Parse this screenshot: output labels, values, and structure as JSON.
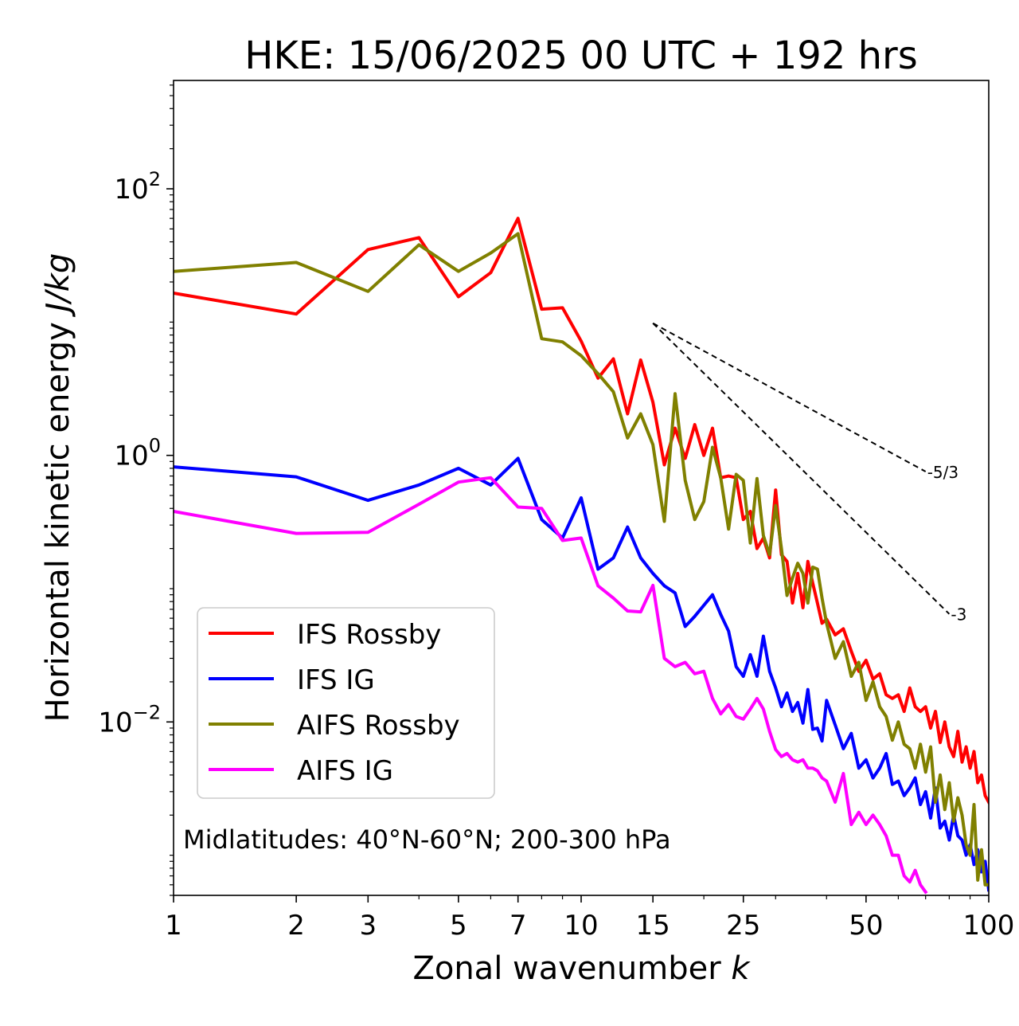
{
  "chart_data": {
    "type": "line",
    "title": "HKE: 15/06/2025 00 UTC + 192 hrs",
    "xlabel": "Zonal wavenumber",
    "xlabel_symbol": "k",
    "ylabel": "Horizontal kinetic energy",
    "ylabel_unit": "J/kg",
    "xscale": "log",
    "yscale": "log",
    "xlim": [
      1,
      100
    ],
    "ylim": [
      0.0005,
      650
    ],
    "xticks": [
      1,
      2,
      3,
      5,
      7,
      10,
      15,
      25,
      50,
      100
    ],
    "xtick_labels": [
      "1",
      "2",
      "3",
      "5",
      "7",
      "10",
      "15",
      "25",
      "50",
      "100"
    ],
    "yticks": [
      {
        "value": 100,
        "base": "10",
        "exp": "2"
      },
      {
        "value": 1,
        "base": "10",
        "exp": "0"
      },
      {
        "value": 0.01,
        "base": "10",
        "exp": "−2"
      }
    ],
    "grid": false,
    "legend_position": "lower-left",
    "annotation": "Midlatitudes: 40°N-60°N; 200-300 hPa",
    "series": [
      {
        "name": "IFS Rossby",
        "color": "#ff0000",
        "x": [
          1,
          2,
          3,
          4,
          5,
          6,
          7,
          8,
          9,
          10,
          11,
          12,
          13,
          14,
          15,
          16,
          17,
          18,
          19,
          20,
          21,
          22,
          23,
          24,
          25,
          26,
          27,
          28,
          29,
          30,
          31,
          32,
          33,
          34,
          35,
          36,
          37,
          38,
          39,
          40,
          42,
          44,
          46,
          48,
          50,
          52,
          54,
          56,
          58,
          60,
          62,
          64,
          66,
          68,
          70,
          72,
          74,
          76,
          78,
          80,
          82,
          84,
          86,
          88,
          90,
          92,
          94,
          96,
          98,
          100
        ],
        "y": [
          16.5,
          11.5,
          35,
          43,
          15.5,
          23.5,
          60,
          12.5,
          12.8,
          7.2,
          3.8,
          5.3,
          2.05,
          5.2,
          2.5,
          0.85,
          1.6,
          0.95,
          1.7,
          1.0,
          1.6,
          0.68,
          0.7,
          0.68,
          0.33,
          0.38,
          0.2,
          0.24,
          0.17,
          0.55,
          0.18,
          0.16,
          0.078,
          0.13,
          0.072,
          0.16,
          0.11,
          0.078,
          0.055,
          0.059,
          0.045,
          0.05,
          0.034,
          0.024,
          0.029,
          0.021,
          0.023,
          0.016,
          0.015,
          0.016,
          0.012,
          0.018,
          0.013,
          0.012,
          0.013,
          0.009,
          0.012,
          0.007,
          0.01,
          0.0065,
          0.0055,
          0.0085,
          0.005,
          0.0065,
          0.0045,
          0.006,
          0.0035,
          0.004,
          0.0028,
          0.0025
        ]
      },
      {
        "name": "IFS IG",
        "color": "#0000ff",
        "x": [
          1,
          2,
          3,
          4,
          5,
          6,
          7,
          8,
          9,
          10,
          11,
          12,
          13,
          14,
          15,
          16,
          17,
          18,
          19,
          20,
          21,
          22,
          23,
          24,
          25,
          26,
          27,
          28,
          29,
          30,
          31,
          32,
          33,
          34,
          35,
          36,
          37,
          38,
          39,
          40,
          42,
          44,
          46,
          48,
          50,
          52,
          54,
          56,
          58,
          60,
          62,
          64,
          66,
          68,
          70,
          72,
          74,
          76,
          78,
          80,
          82,
          84,
          86,
          88,
          90,
          92,
          94,
          96,
          98,
          100
        ],
        "y": [
          0.82,
          0.69,
          0.46,
          0.6,
          0.8,
          0.6,
          0.95,
          0.33,
          0.24,
          0.48,
          0.14,
          0.17,
          0.29,
          0.17,
          0.13,
          0.105,
          0.093,
          0.052,
          0.062,
          0.075,
          0.09,
          0.064,
          0.048,
          0.026,
          0.022,
          0.032,
          0.022,
          0.044,
          0.024,
          0.018,
          0.013,
          0.0165,
          0.012,
          0.014,
          0.0098,
          0.0175,
          0.0088,
          0.009,
          0.0072,
          0.0145,
          0.0095,
          0.0063,
          0.0082,
          0.0045,
          0.0052,
          0.0038,
          0.0045,
          0.0058,
          0.0034,
          0.0036,
          0.0028,
          0.0032,
          0.0038,
          0.0024,
          0.003,
          0.0019,
          0.0032,
          0.0016,
          0.0018,
          0.0013,
          0.002,
          0.0014,
          0.0013,
          0.001,
          0.0012,
          0.00085,
          0.0011,
          0.00075,
          0.0009,
          0.00055
        ]
      },
      {
        "name": "AIFS Rossby",
        "color": "#808000",
        "x": [
          1,
          2,
          3,
          4,
          5,
          6,
          7,
          8,
          9,
          10,
          11,
          12,
          13,
          14,
          15,
          16,
          17,
          18,
          19,
          20,
          21,
          22,
          23,
          24,
          25,
          26,
          27,
          28,
          29,
          30,
          31,
          32,
          33,
          34,
          35,
          36,
          37,
          38,
          39,
          40,
          42,
          44,
          46,
          48,
          50,
          52,
          54,
          56,
          58,
          60,
          62,
          64,
          66,
          68,
          70,
          72,
          74,
          76,
          78,
          80,
          82,
          84,
          86,
          88,
          90,
          92,
          94,
          96,
          98,
          100
        ],
        "y": [
          24,
          28,
          17,
          38,
          24,
          33,
          46,
          7.5,
          7.1,
          5.6,
          4.1,
          3.0,
          1.35,
          2.05,
          1.2,
          0.32,
          2.9,
          0.65,
          0.33,
          0.45,
          1.15,
          0.68,
          0.28,
          0.72,
          0.65,
          0.22,
          0.67,
          0.25,
          0.18,
          0.42,
          0.2,
          0.089,
          0.12,
          0.155,
          0.13,
          0.078,
          0.145,
          0.14,
          0.085,
          0.055,
          0.03,
          0.04,
          0.022,
          0.028,
          0.0145,
          0.02,
          0.013,
          0.011,
          0.0073,
          0.01,
          0.0068,
          0.0063,
          0.0045,
          0.0068,
          0.0042,
          0.0065,
          0.0025,
          0.004,
          0.0022,
          0.0035,
          0.0018,
          0.0027,
          0.002,
          0.0012,
          0.001,
          0.0024,
          0.00065,
          0.0011,
          0.0006,
          0.0006
        ]
      },
      {
        "name": "AIFS IG",
        "color": "#ff00ff",
        "x": [
          1,
          2,
          3,
          4,
          5,
          6,
          7,
          8,
          9,
          10,
          11,
          12,
          13,
          14,
          15,
          16,
          17,
          18,
          19,
          20,
          21,
          22,
          23,
          24,
          25,
          26,
          27,
          28,
          29,
          30,
          31,
          32,
          33,
          34,
          35,
          36,
          37,
          38,
          39,
          40,
          42,
          44,
          46,
          48,
          50,
          52,
          54,
          56,
          58,
          60,
          62,
          64,
          66,
          68,
          70
        ],
        "y": [
          0.38,
          0.26,
          0.265,
          0.43,
          0.63,
          0.68,
          0.41,
          0.4,
          0.23,
          0.24,
          0.105,
          0.085,
          0.068,
          0.067,
          0.106,
          0.03,
          0.026,
          0.028,
          0.023,
          0.024,
          0.015,
          0.0115,
          0.0135,
          0.011,
          0.0105,
          0.0125,
          0.015,
          0.0125,
          0.0085,
          0.0062,
          0.0055,
          0.0058,
          0.0052,
          0.005,
          0.0052,
          0.0045,
          0.0045,
          0.0043,
          0.0038,
          0.0036,
          0.0025,
          0.0041,
          0.0017,
          0.0021,
          0.0017,
          0.002,
          0.0017,
          0.0014,
          0.001,
          0.001,
          0.0007,
          0.00063,
          0.00077,
          0.0006,
          0.00053
        ]
      }
    ],
    "reference_lines": [
      {
        "label": "-5/3",
        "x": [
          15,
          70
        ],
        "y": [
          9.8,
          0.756
        ]
      },
      {
        "label": "-3",
        "x": [
          15,
          80
        ],
        "y": [
          9.8,
          0.0646
        ]
      }
    ]
  }
}
